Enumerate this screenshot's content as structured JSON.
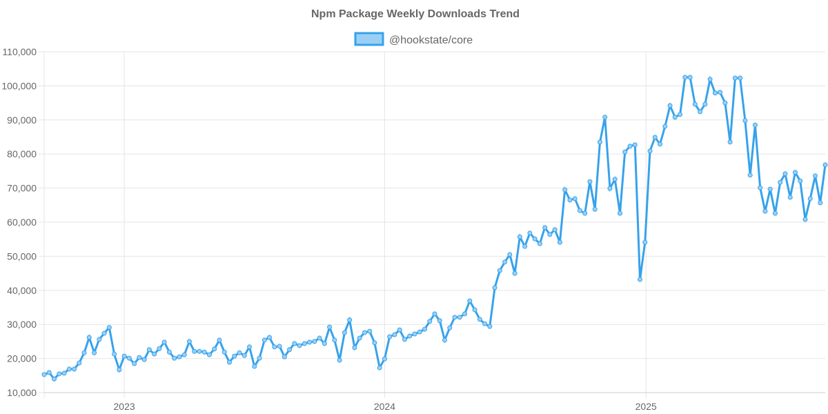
{
  "chart_data": {
    "type": "line",
    "title": "Npm Package Weekly Downloads Trend",
    "xlabel": "",
    "ylabel": "",
    "ylim": [
      10000,
      110000
    ],
    "y_ticks": [
      10000,
      20000,
      30000,
      40000,
      50000,
      60000,
      70000,
      80000,
      90000,
      100000,
      110000
    ],
    "y_tick_labels": [
      "10,000",
      "20,000",
      "30,000",
      "40,000",
      "50,000",
      "60,000",
      "70,000",
      "80,000",
      "90,000",
      "100,000",
      "110,000"
    ],
    "x_unit": "week index",
    "x_ticks": [
      {
        "label": "2023",
        "index": 16
      },
      {
        "label": "2024",
        "index": 68
      },
      {
        "label": "2025",
        "index": 120.2
      }
    ],
    "grid": true,
    "legend_position": "top-center",
    "colors": {
      "line": "#36a2eb",
      "fill": "#9ad0f5",
      "title": "#666666",
      "grid": "#e5e5e5"
    },
    "series": [
      {
        "name": "@hookstate/core",
        "values": [
          15300,
          15900,
          14000,
          15500,
          15700,
          16900,
          16900,
          18700,
          21700,
          26200,
          21700,
          25600,
          27400,
          29100,
          21300,
          16700,
          20700,
          20100,
          18500,
          20300,
          19700,
          22600,
          21300,
          22900,
          24800,
          21900,
          20100,
          20500,
          21100,
          25000,
          22100,
          22100,
          21900,
          21100,
          22800,
          25400,
          21900,
          18900,
          20700,
          21700,
          20900,
          23400,
          17700,
          20100,
          25400,
          26200,
          23400,
          23600,
          20500,
          22600,
          24400,
          23800,
          24400,
          24800,
          25000,
          26000,
          24400,
          29200,
          25400,
          19500,
          27600,
          31300,
          23200,
          26000,
          27600,
          28000,
          24600,
          17300,
          19900,
          26400,
          27000,
          28400,
          25600,
          26600,
          27200,
          27800,
          28600,
          30900,
          33100,
          31100,
          25400,
          29000,
          32100,
          32100,
          33100,
          36900,
          34300,
          31500,
          30200,
          29400,
          40800,
          45800,
          48300,
          50500,
          45000,
          55700,
          52900,
          56800,
          55100,
          53700,
          58400,
          56400,
          57800,
          54100,
          69500,
          66500,
          66900,
          63400,
          62600,
          71900,
          63800,
          83500,
          90800,
          69900,
          72600,
          62600,
          80600,
          82300,
          82700,
          43200,
          54100,
          80900,
          84900,
          82900,
          88100,
          94200,
          90800,
          91600,
          102500,
          102500,
          94600,
          92400,
          94600,
          101900,
          97900,
          98100,
          95000,
          83500,
          102300,
          102300,
          89800,
          73800,
          88500,
          70100,
          63200,
          69700,
          62600,
          71700,
          74200,
          67300,
          74600,
          72100,
          60800,
          66900,
          73600,
          65700,
          76800
        ]
      }
    ]
  }
}
